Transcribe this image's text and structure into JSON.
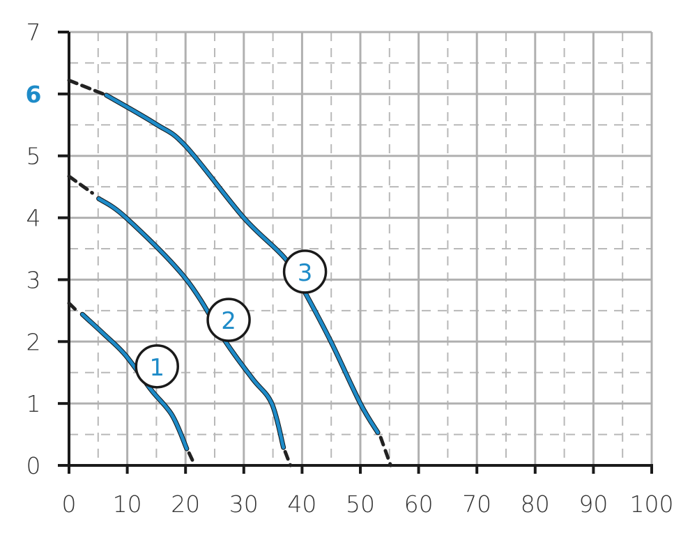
{
  "chart_data": {
    "type": "line",
    "title": "",
    "xlabel": "",
    "ylabel": "",
    "xlim": [
      0,
      100
    ],
    "ylim": [
      0,
      7
    ],
    "x_ticks": [
      "0",
      "10",
      "20",
      "30",
      "40",
      "50",
      "60",
      "70",
      "80",
      "90",
      "100"
    ],
    "y_ticks": [
      "0",
      "1",
      "2",
      "3",
      "4",
      "5",
      "6",
      "7"
    ],
    "highlighted_y_tick": "6",
    "grid": {
      "major": true,
      "minor_dashed": true,
      "major_x_step": 10,
      "minor_x_step": 5,
      "major_y_step": 1,
      "minor_y_step": 0.5
    },
    "colors": {
      "curve": "#1e8bc8",
      "extrapolation": "#222222",
      "grid_major": "#b0b0b0",
      "grid_minor": "#b8b8b8",
      "axis": "#1a1a1a",
      "highlight_tick": "#1e8bc8"
    },
    "series": [
      {
        "label": "1",
        "label_at": [
          15.1,
          1.6
        ],
        "dashed_start": [
          [
            0,
            2.62
          ],
          [
            1.3,
            2.5
          ]
        ],
        "solid": [
          [
            2.3,
            2.44
          ],
          [
            6,
            2.12
          ],
          [
            9.7,
            1.78
          ],
          [
            14.1,
            1.22
          ],
          [
            17.7,
            0.81
          ],
          [
            20.2,
            0.27
          ]
        ],
        "dashed_end": [
          [
            20.6,
            0.2
          ],
          [
            21.6,
            0
          ]
        ]
      },
      {
        "label": "2",
        "label_at": [
          27.4,
          2.35
        ],
        "dashed_start": [
          [
            0,
            4.67
          ],
          [
            4,
            4.4
          ]
        ],
        "solid": [
          [
            5.1,
            4.31
          ],
          [
            9.8,
            4.0
          ],
          [
            20,
            3.02
          ],
          [
            27,
            1.98
          ],
          [
            31.5,
            1.4
          ],
          [
            34.8,
            1.0
          ],
          [
            36.8,
            0.29
          ]
        ],
        "dashed_end": [
          [
            37.1,
            0.22
          ],
          [
            38,
            0
          ]
        ]
      },
      {
        "label": "3",
        "label_at": [
          40.5,
          3.13
        ],
        "dashed_start": [
          [
            0,
            6.22
          ],
          [
            6.4,
            5.98
          ]
        ],
        "solid": [
          [
            6.4,
            5.98
          ],
          [
            14.8,
            5.52
          ],
          [
            20,
            5.16
          ],
          [
            30,
            4.0
          ],
          [
            37.2,
            3.33
          ],
          [
            40.7,
            2.76
          ],
          [
            45,
            1.99
          ],
          [
            50,
            1.0
          ],
          [
            53,
            0.53
          ]
        ],
        "dashed_end": [
          [
            53.5,
            0.45
          ],
          [
            55.2,
            0
          ]
        ]
      }
    ]
  }
}
